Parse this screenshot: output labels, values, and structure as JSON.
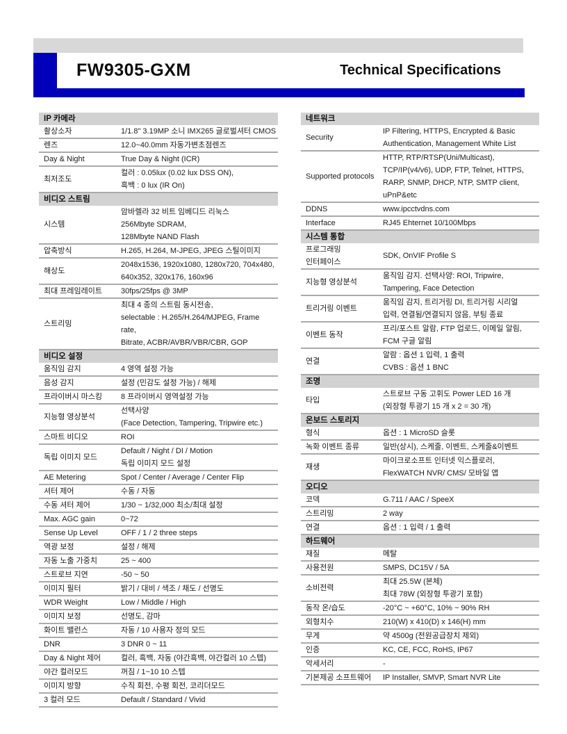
{
  "header": {
    "model": "FW9305-GXM",
    "doc_title": "Technical Specifications",
    "accent_color": "#0000bb",
    "topbar_color": "#d8d8d8"
  },
  "columns": [
    {
      "name": "left",
      "sections": [
        {
          "title": "IP 카메라",
          "rows": [
            {
              "label": "촬상소자",
              "value": [
                "1/1.8\" 3.19MP 소니 IMX265 글로벌셔터 CMOS"
              ]
            },
            {
              "label": "렌즈",
              "value": [
                "12.0~40.0mm 자동가변초점렌즈"
              ]
            },
            {
              "label": "Day & Night",
              "value": [
                "True Day & Night (ICR)"
              ]
            },
            {
              "label": "최저조도",
              "value": [
                "컬러 : 0.05lux (0.02 lux DSS ON),",
                "흑백 : 0 lux (IR On)"
              ]
            }
          ]
        },
        {
          "title": "비디오 스트림",
          "rows": [
            {
              "label": "시스템",
              "value": [
                "암바렐라 32 비트 임베디드 리눅스",
                "256Mbyte SDRAM,",
                "128Mbyte NAND Flash"
              ]
            },
            {
              "label": "압축방식",
              "value": [
                "H.265, H.264, M-JPEG, JPEG 스틸이미지"
              ]
            },
            {
              "label": "해상도",
              "value": [
                "2048x1536, 1920x1080, 1280x720, 704x480,",
                "640x352, 320x176, 160x96"
              ]
            },
            {
              "label": "최대 프레임레이트",
              "value": [
                "30fps/25fps @ 3MP"
              ]
            },
            {
              "label": "스트리밍",
              "value": [
                "최대 4 종의 스트림 동시전송,",
                "selectable : H.265/H.264/MJPEG, Frame rate,",
                "Bitrate, ACBR/AVBR/VBR/CBR, GOP"
              ]
            }
          ]
        },
        {
          "title": "비디오 설정",
          "rows": [
            {
              "label": "움직임 감지",
              "value": [
                "4 영역 설정 가능"
              ]
            },
            {
              "label": "음성 감지",
              "value": [
                "설정 (민감도 설정 가능) / 해제"
              ]
            },
            {
              "label": "프라이버시 마스킹",
              "value": [
                "8 프라이버시 영역설정 가능"
              ]
            },
            {
              "label": "지능형 영상분석",
              "value": [
                "선택사양",
                "(Face Detection, Tampering, Tripwire etc.)"
              ]
            },
            {
              "label": "스마트 비디오",
              "value": [
                "ROI"
              ]
            },
            {
              "label": "독립 이미지 모드",
              "value": [
                "Default / Night / DI / Motion",
                "독립 이미지 모드 설정"
              ]
            },
            {
              "label": "AE Metering",
              "value": [
                "Spot / Center / Average / Center Flip"
              ]
            },
            {
              "label": "셔터 제어",
              "value": [
                "수동 / 자동"
              ]
            },
            {
              "label": "수동 셔터 제어",
              "value": [
                "1/30 ~ 1/32,000 최소/최대 설정"
              ]
            },
            {
              "label": "Max. AGC gain",
              "value": [
                "0~72"
              ]
            },
            {
              "label": "Sense Up Level",
              "value": [
                "OFF / 1 / 2 three steps"
              ]
            },
            {
              "label": "역광 보정",
              "value": [
                "설정 / 해제"
              ]
            },
            {
              "label": "자동 노출 가중치",
              "value": [
                "25 ~ 400"
              ]
            },
            {
              "label": "스트로브 지연",
              "value": [
                "-50 ~ 50"
              ]
            },
            {
              "label": "이미지 필터",
              "value": [
                "밝기 / 대비 / 색조 / 채도 / 선명도"
              ]
            },
            {
              "label": "WDR Weight",
              "value": [
                "Low / Middle / High"
              ]
            },
            {
              "label": "이미지 보정",
              "value": [
                "선명도, 감마"
              ]
            },
            {
              "label": "화이트 밸런스",
              "value": [
                "자동 / 10 사용자 정의 모드"
              ]
            },
            {
              "label": "DNR",
              "value": [
                "3 DNR 0 ~ 11"
              ]
            },
            {
              "label": "Day & Night 제어",
              "value": [
                "컬러, 흑백, 자동 (야간흑백, 야간컬러 10 스텝)"
              ]
            },
            {
              "label": "야간 컬러모드",
              "value": [
                "꺼짐 / 1~10 10 스텝"
              ]
            },
            {
              "label": "이미지 방향",
              "value": [
                "수직 회전, 수평 회전, 코리더모드"
              ]
            },
            {
              "label": "3 컬러 모드",
              "value": [
                "Default / Standard / Vivid"
              ]
            }
          ]
        }
      ]
    },
    {
      "name": "right",
      "sections": [
        {
          "title": "네트워크",
          "rows": [
            {
              "label": "Security",
              "value": [
                "IP Filtering, HTTPS, Encrypted & Basic",
                "Authentication, Management White List"
              ]
            },
            {
              "label": "Supported protocols",
              "value": [
                "HTTP, RTP/RTSP(Uni/Multicast),",
                "TCP/IP(v4/v6), UDP, FTP, Telnet, HTTPS,",
                "RARP, SNMP, DHCP, NTP, SMTP client,",
                "uPnP&etc"
              ]
            },
            {
              "label": "DDNS",
              "value": [
                "www.ipcctvdns.com"
              ]
            },
            {
              "label": "Interface",
              "value": [
                "RJ45 Ehternet 10/100Mbps"
              ]
            }
          ]
        },
        {
          "title": "시스템 통합",
          "rows": [
            {
              "label": [
                "프로그래밍",
                "인터페이스"
              ],
              "value": [
                "SDK, OnVIF Profile S"
              ]
            },
            {
              "label": "지능형 영상분석",
              "value": [
                "움직임 감지. 선택사양: ROI, Tripwire,",
                "Tampering, Face Detection"
              ]
            },
            {
              "label": "트리거링 이벤트",
              "value": [
                "움직임 감지, 트리거링 DI, 트리거링 시리얼",
                "입력, 연결됨/연결되지 않음, 부팅 종료"
              ]
            },
            {
              "label": "이벤트 동작",
              "value": [
                "프리/포스트 알람, FTP 업로드, 이메일 알림,",
                "FCM 구글 알림"
              ]
            },
            {
              "label": "연결",
              "value": [
                "알람 : 옵션 1 입력, 1 출력",
                "CVBS : 옵션 1 BNC"
              ]
            }
          ]
        },
        {
          "title": "조명",
          "rows": [
            {
              "label": "타입",
              "value": [
                "스트로브 구동 고휘도 Power LED 16 개",
                "(외장형 투광기 15 개 x 2 = 30 개)"
              ]
            }
          ]
        },
        {
          "title": "온보드 스토리지",
          "rows": [
            {
              "label": "형식",
              "value": [
                "옵션 : 1 MicroSD 슬롯"
              ]
            },
            {
              "label": "녹화 이벤트 종류",
              "value": [
                "일반(상시), 스케줄, 이벤트, 스케줄&이벤트"
              ]
            },
            {
              "label": "재생",
              "value": [
                "마이크로소프트 인터넷 익스플로러,",
                "FlexWATCH NVR/ CMS/ 모바일 앱"
              ]
            }
          ]
        },
        {
          "title": "오디오",
          "rows": [
            {
              "label": "코덱",
              "value": [
                "G.711 / AAC / SpeeX"
              ]
            },
            {
              "label": "스트리밍",
              "value": [
                "2 way"
              ]
            },
            {
              "label": "연결",
              "value": [
                "옵션 : 1 입력 / 1 출력"
              ]
            }
          ]
        },
        {
          "title": "하드웨어",
          "rows": [
            {
              "label": "재질",
              "value": [
                "메탈"
              ]
            },
            {
              "label": "사용전원",
              "value": [
                "SMPS, DC15V / 5A"
              ]
            },
            {
              "label": "소비전력",
              "value": [
                "최대 25.5W (본체)",
                "최대 78W (외장형 투광기 포함)"
              ]
            },
            {
              "label": "동작 온/습도",
              "value": [
                "-20°C ~ +60°C, 10% ~ 90% RH"
              ]
            },
            {
              "label": "외형치수",
              "value": [
                "210(W) x 410(D) x 146(H) mm"
              ]
            },
            {
              "label": "무게",
              "value": [
                "약 4500g (전원공급장치 제외)"
              ]
            },
            {
              "label": "인증",
              "value": [
                "KC, CE, FCC, RoHS, IP67"
              ]
            },
            {
              "label": "악세서리",
              "value": [
                "-"
              ]
            },
            {
              "label": "기본제공 소프트웨어",
              "value": [
                "IP Installer, SMVP, Smart NVR Lite"
              ]
            }
          ]
        }
      ]
    }
  ]
}
